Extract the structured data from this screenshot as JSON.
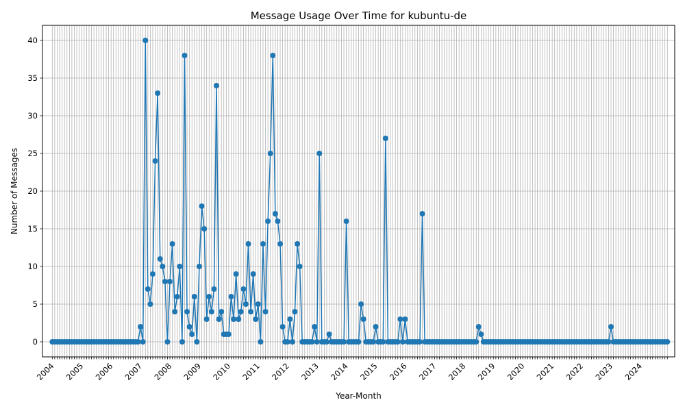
{
  "chart_data": {
    "type": "line",
    "title": "Message Usage Over Time for kubuntu-de",
    "xlabel": "Year-Month",
    "ylabel": "Number of Messages",
    "x_start": "2004-01",
    "x_end": "2024-12",
    "xlim": [
      "2003-09",
      "2025-03"
    ],
    "ylim": [
      -2,
      42
    ],
    "y_ticks": [
      0,
      5,
      10,
      15,
      20,
      25,
      30,
      35,
      40
    ],
    "x_tick_labels": [
      "2004",
      "2005",
      "2006",
      "2007",
      "2008",
      "2009",
      "2010",
      "2011",
      "2012",
      "2013",
      "2014",
      "2015",
      "2016",
      "2017",
      "2018",
      "2019",
      "2020",
      "2021",
      "2022",
      "2023",
      "2024"
    ],
    "grid": true,
    "marker": "circle",
    "color": "#1f77b4",
    "nonzero_values": {
      "2007-01": 2,
      "2007-03": 40,
      "2007-04": 7,
      "2007-05": 5,
      "2007-06": 9,
      "2007-07": 24,
      "2007-08": 33,
      "2007-09": 11,
      "2007-10": 10,
      "2007-11": 8,
      "2008-01": 8,
      "2008-02": 13,
      "2008-03": 4,
      "2008-04": 6,
      "2008-05": 10,
      "2008-07": 38,
      "2008-08": 4,
      "2008-09": 2,
      "2008-10": 1,
      "2008-11": 6,
      "2009-01": 10,
      "2009-02": 18,
      "2009-03": 15,
      "2009-04": 3,
      "2009-05": 6,
      "2009-06": 4,
      "2009-07": 7,
      "2009-08": 34,
      "2009-09": 3,
      "2009-10": 4,
      "2009-11": 1,
      "2009-12": 1,
      "2010-01": 1,
      "2010-02": 6,
      "2010-03": 3,
      "2010-04": 9,
      "2010-05": 3,
      "2010-06": 4,
      "2010-07": 7,
      "2010-08": 5,
      "2010-09": 13,
      "2010-10": 4,
      "2010-11": 9,
      "2010-12": 3,
      "2011-01": 5,
      "2011-03": 13,
      "2011-04": 4,
      "2011-05": 16,
      "2011-06": 25,
      "2011-07": 38,
      "2011-08": 17,
      "2011-09": 16,
      "2011-10": 13,
      "2011-11": 2,
      "2012-02": 3,
      "2012-04": 4,
      "2012-05": 13,
      "2012-06": 10,
      "2012-12": 2,
      "2013-02": 25,
      "2013-06": 1,
      "2014-01": 16,
      "2014-07": 5,
      "2014-08": 3,
      "2015-01": 2,
      "2015-05": 27,
      "2015-11": 3,
      "2016-01": 3,
      "2016-08": 17,
      "2018-07": 2,
      "2018-08": 1,
      "2023-01": 2
    }
  }
}
